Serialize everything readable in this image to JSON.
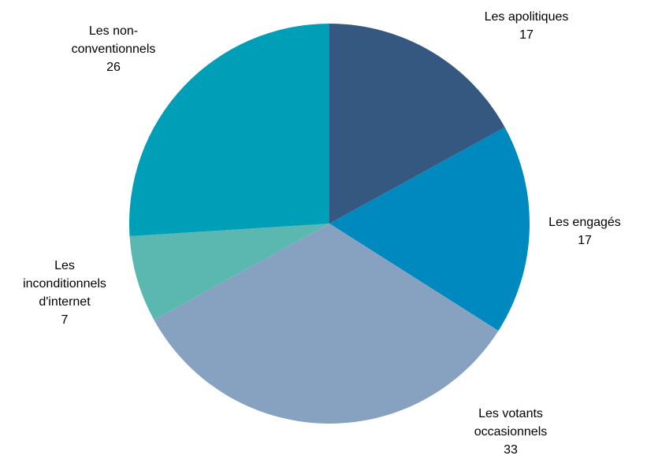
{
  "chart_data": {
    "type": "pie",
    "categories": [
      "Les apolitiques",
      "Les engagés",
      "Les votants occasionnels",
      "Les inconditionnels d'internet",
      "Les non-conventionnels"
    ],
    "values": [
      17,
      17,
      33,
      7,
      26
    ],
    "colors": [
      "#34587f",
      "#0089bf",
      "#87a2c1",
      "#5ab8b1",
      "#009fb8"
    ]
  }
}
